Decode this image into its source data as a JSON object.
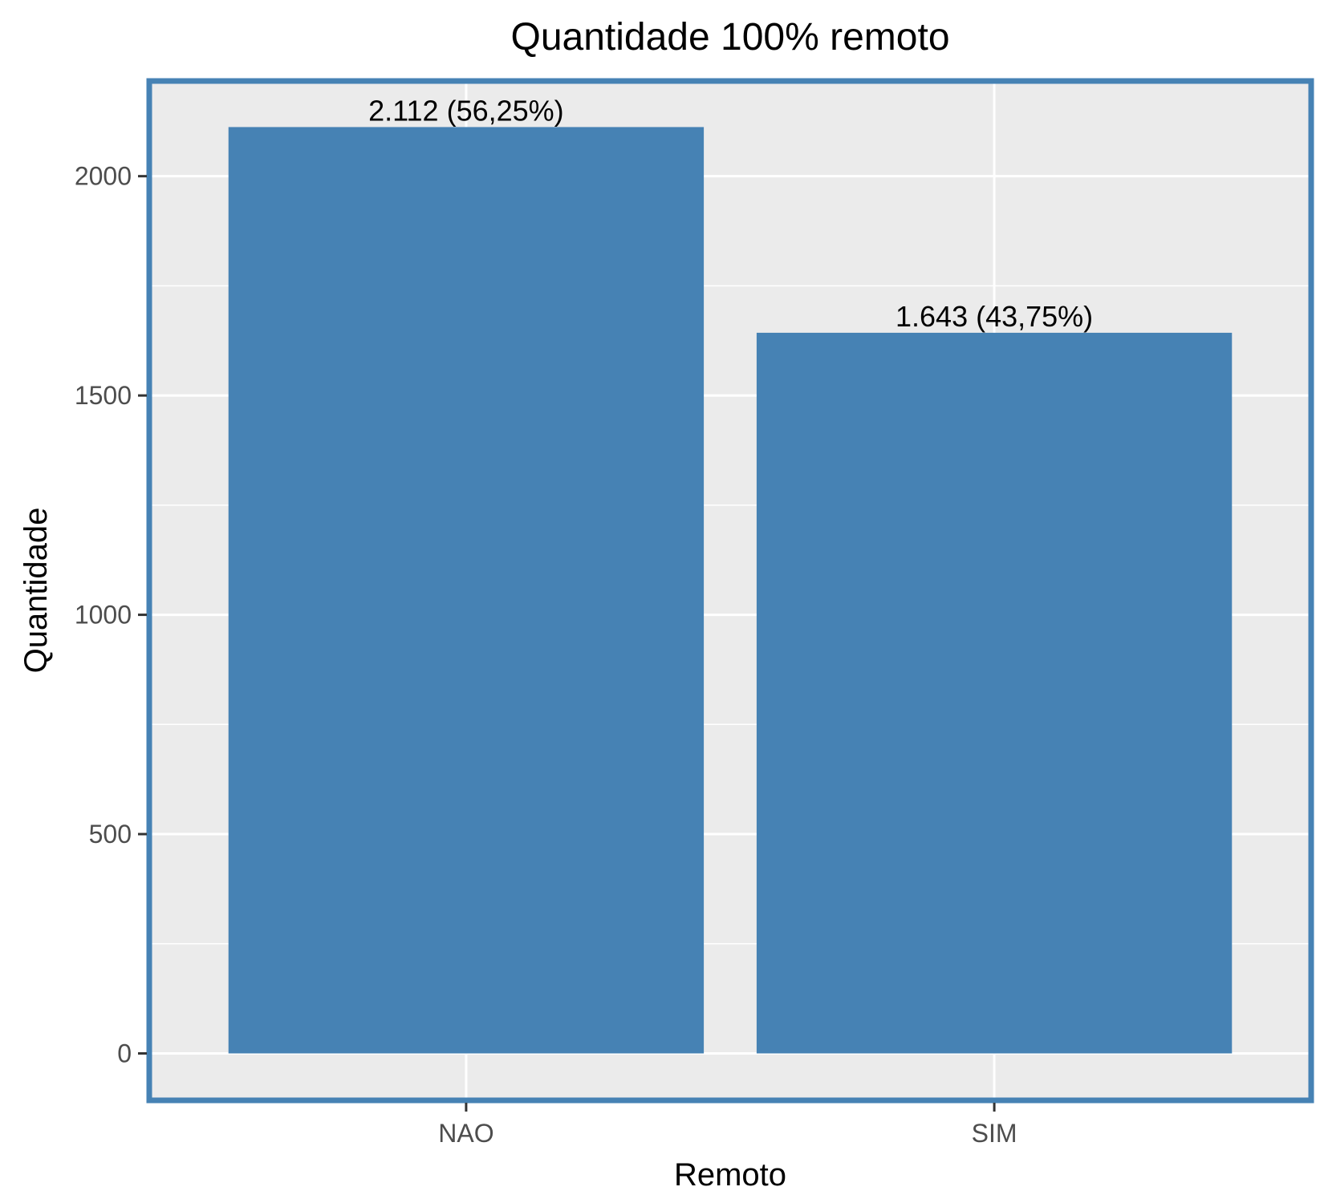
{
  "chart_data": {
    "type": "bar",
    "title": "Quantidade 100% remoto",
    "xlabel": "Remoto",
    "ylabel": "Quantidade",
    "categories": [
      "NAO",
      "SIM"
    ],
    "values": [
      2112,
      1643
    ],
    "data_labels": [
      "2.112 (56,25%)",
      "1.643 (43,75%)"
    ],
    "ylim": [
      -107,
      2217
    ],
    "y_ticks": [
      0,
      500,
      1000,
      1500,
      2000
    ],
    "y_tick_labels": [
      "0",
      "500",
      "1000",
      "1500",
      "2000"
    ],
    "grid": true,
    "legend": "none",
    "colors": {
      "bar": "#4682b4",
      "panel_background": "#ebebeb",
      "panel_border": "#4682b4",
      "grid": "#ffffff"
    }
  }
}
